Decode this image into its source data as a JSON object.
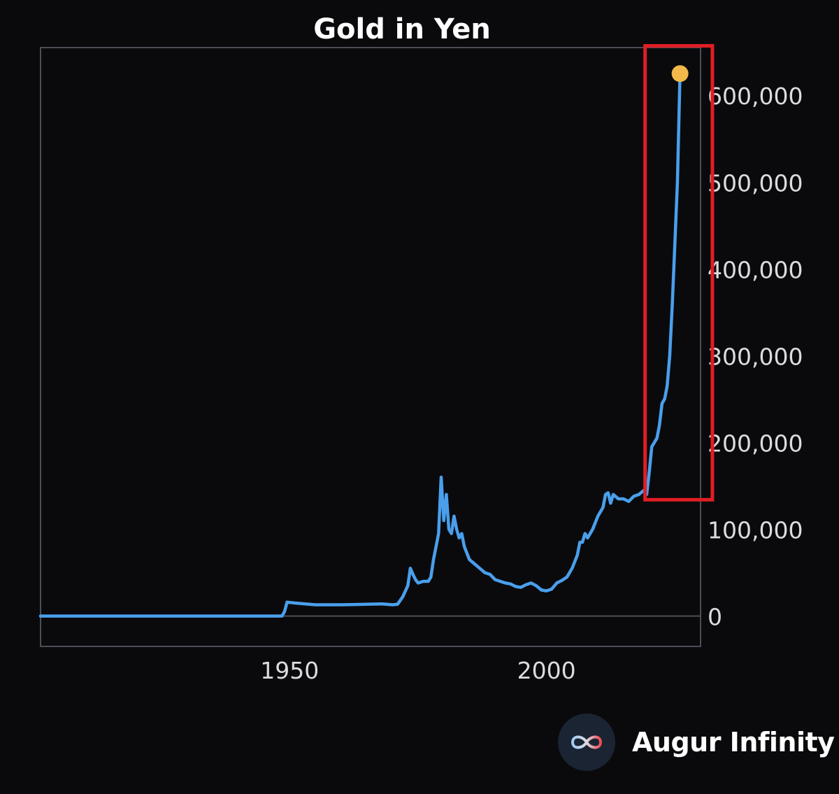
{
  "chart_data": {
    "type": "line",
    "title": "Gold in Yen",
    "xlabel": "",
    "ylabel": "",
    "x_ticks": [
      1950,
      2000
    ],
    "y_ticks": [
      0,
      100000,
      200000,
      300000,
      400000,
      500000,
      600000
    ],
    "y_tick_labels": [
      "0",
      "100,000",
      "200,000",
      "300,000",
      "400,000",
      "500,000",
      "600,000"
    ],
    "xlim": [
      1901.5,
      2030
    ],
    "ylim": [
      -35000,
      655000
    ],
    "grid": false,
    "legend": "none",
    "series": [
      {
        "color": "#4a9fec",
        "x": [
          1901.5,
          1948.5,
          1949,
          1949.5,
          1951,
          1955,
          1960,
          1965,
          1968,
          1970,
          1971,
          1972,
          1973,
          1973.5,
          1974,
          1974.5,
          1975,
          1976,
          1977,
          1977.5,
          1978,
          1978.5,
          1979,
          1979.5,
          1980,
          1980.5,
          1981,
          1981.5,
          1982,
          1982.5,
          1983,
          1983.5,
          1984,
          1985,
          1986,
          1987,
          1988,
          1989,
          1990,
          1991,
          1992,
          1993,
          1994,
          1995,
          1996,
          1997,
          1998,
          1999,
          2000,
          2001,
          2002,
          2003,
          2004,
          2005,
          2006,
          2006.5,
          2007,
          2007.5,
          2008,
          2008.5,
          2009,
          2010,
          2011,
          2011.5,
          2012,
          2012.5,
          2013,
          2014,
          2015,
          2016,
          2017,
          2018,
          2019,
          2019.5,
          2020,
          2020.5,
          2021,
          2021.5,
          2022,
          2022.5,
          2023,
          2023.5,
          2024,
          2024.5,
          2025,
          2025.5,
          2026
        ],
        "y": [
          0,
          0,
          5000,
          16000,
          15000,
          13000,
          13000,
          13500,
          14000,
          13000,
          13500,
          22000,
          35000,
          55000,
          48000,
          42000,
          38000,
          40000,
          40000,
          45000,
          65000,
          80000,
          95000,
          160000,
          110000,
          140000,
          100000,
          95000,
          115000,
          100000,
          90000,
          95000,
          80000,
          65000,
          60000,
          55000,
          50000,
          48000,
          42000,
          40000,
          38000,
          37000,
          34000,
          33000,
          36000,
          38000,
          35000,
          30000,
          29000,
          31000,
          38000,
          41000,
          45000,
          55000,
          70000,
          85000,
          85000,
          95000,
          90000,
          95000,
          100000,
          115000,
          125000,
          140000,
          142000,
          130000,
          140000,
          135000,
          135000,
          132000,
          138000,
          140000,
          145000,
          140000,
          165000,
          195000,
          200000,
          205000,
          220000,
          245000,
          250000,
          265000,
          300000,
          360000,
          430000,
          500000,
          625000
        ]
      }
    ],
    "last_point_color": "#f2b94a",
    "highlight": {
      "color": "#e01e24",
      "x_range": [
        2019.2,
        2032.3
      ],
      "y_range": [
        134000,
        657000
      ]
    }
  },
  "brand": {
    "name": "Augur Infinity",
    "icon": "infinity-icon"
  }
}
